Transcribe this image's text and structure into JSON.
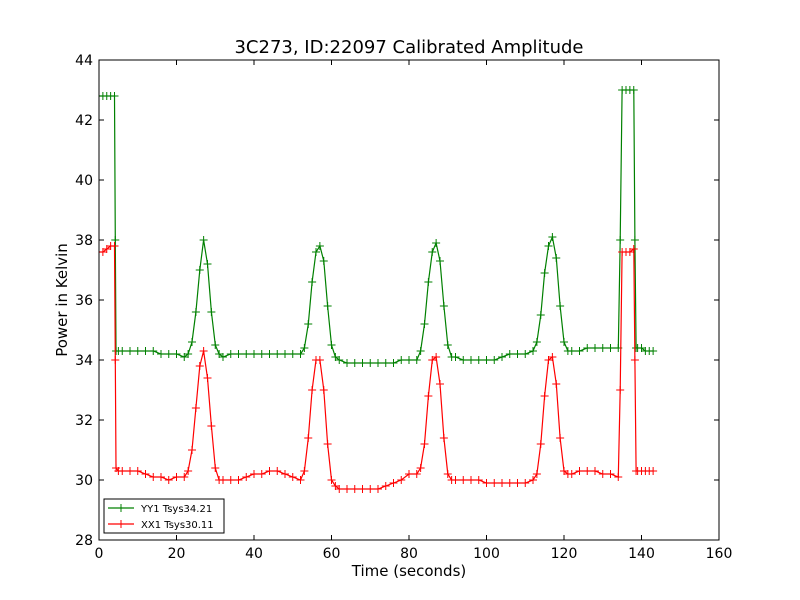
{
  "chart_data": {
    "type": "line",
    "title": "3C273, ID:22097 Calibrated Amplitude",
    "xlabel": "Time (seconds)",
    "ylabel": "Power in Kelvin",
    "xlim": [
      0,
      160
    ],
    "ylim": [
      28,
      44
    ],
    "xticks": [
      0,
      20,
      40,
      60,
      80,
      100,
      120,
      140,
      160
    ],
    "yticks": [
      28,
      30,
      32,
      34,
      36,
      38,
      40,
      42,
      44
    ],
    "grid": false,
    "legend_position": "lower-left",
    "marker": "+",
    "series": [
      {
        "name": "YY1 Tsys34.21",
        "color": "#008000",
        "x": [
          0,
          1,
          2,
          3,
          4,
          4.2,
          4.4,
          5,
          6,
          8,
          10,
          12,
          14,
          16,
          18,
          20,
          22,
          23,
          24,
          25,
          26,
          27,
          28,
          29,
          30,
          31,
          32,
          34,
          36,
          38,
          40,
          42,
          44,
          46,
          48,
          50,
          52,
          53,
          54,
          55,
          56,
          57,
          58,
          59,
          60,
          61,
          62,
          64,
          66,
          68,
          70,
          72,
          74,
          76,
          78,
          80,
          82,
          83,
          84,
          85,
          86,
          87,
          88,
          89,
          90,
          91,
          92,
          94,
          96,
          98,
          100,
          102,
          104,
          106,
          108,
          110,
          112,
          113,
          114,
          115,
          116,
          117,
          118,
          119,
          120,
          121,
          122,
          124,
          126,
          128,
          130,
          132,
          134,
          134.5,
          135,
          136,
          137,
          138,
          138.3,
          138.6,
          139,
          140,
          141,
          142,
          143
        ],
        "y": [
          42.8,
          42.8,
          42.8,
          42.8,
          42.8,
          38.0,
          34.3,
          34.3,
          34.3,
          34.3,
          34.3,
          34.3,
          34.3,
          34.2,
          34.2,
          34.2,
          34.1,
          34.2,
          34.6,
          35.6,
          37.0,
          38.0,
          37.2,
          35.6,
          34.5,
          34.2,
          34.1,
          34.2,
          34.2,
          34.2,
          34.2,
          34.2,
          34.2,
          34.2,
          34.2,
          34.2,
          34.2,
          34.4,
          35.2,
          36.6,
          37.6,
          37.8,
          37.3,
          35.8,
          34.5,
          34.1,
          34.0,
          33.9,
          33.9,
          33.9,
          33.9,
          33.9,
          33.9,
          33.9,
          34.0,
          34.0,
          34.0,
          34.3,
          35.2,
          36.6,
          37.6,
          37.9,
          37.3,
          35.8,
          34.5,
          34.1,
          34.1,
          34.0,
          34.0,
          34.0,
          34.0,
          34.0,
          34.1,
          34.2,
          34.2,
          34.2,
          34.3,
          34.6,
          35.5,
          36.9,
          37.8,
          38.1,
          37.4,
          35.8,
          34.6,
          34.3,
          34.3,
          34.3,
          34.4,
          34.4,
          34.4,
          34.4,
          34.4,
          38.0,
          43.0,
          43.0,
          43.0,
          43.0,
          38.0,
          34.4,
          34.4,
          34.4,
          34.3,
          34.3,
          34.3
        ]
      },
      {
        "name": "XX1 Tsys30.11",
        "color": "#ff0000",
        "x": [
          0,
          1,
          2,
          3,
          4,
          4.2,
          4.4,
          5,
          6,
          8,
          10,
          12,
          14,
          16,
          18,
          20,
          22,
          23,
          24,
          25,
          26,
          27,
          28,
          29,
          30,
          31,
          32,
          34,
          36,
          38,
          40,
          42,
          44,
          46,
          48,
          50,
          52,
          53,
          54,
          55,
          56,
          57,
          58,
          59,
          60,
          61,
          62,
          64,
          66,
          68,
          70,
          72,
          74,
          76,
          78,
          80,
          82,
          83,
          84,
          85,
          86,
          87,
          88,
          89,
          90,
          91,
          92,
          94,
          96,
          98,
          100,
          102,
          104,
          106,
          108,
          110,
          112,
          113,
          114,
          115,
          116,
          117,
          118,
          119,
          120,
          121,
          122,
          124,
          126,
          128,
          130,
          132,
          134,
          134.5,
          135,
          136,
          137,
          138,
          138.3,
          138.6,
          139,
          140,
          141,
          142,
          143
        ],
        "y": [
          37.6,
          37.6,
          37.7,
          37.8,
          37.8,
          34.0,
          30.4,
          30.3,
          30.3,
          30.3,
          30.3,
          30.2,
          30.1,
          30.1,
          30.0,
          30.1,
          30.1,
          30.3,
          31.0,
          32.4,
          33.8,
          34.3,
          33.4,
          31.8,
          30.4,
          30.0,
          30.0,
          30.0,
          30.0,
          30.1,
          30.2,
          30.2,
          30.3,
          30.3,
          30.2,
          30.1,
          30.0,
          30.3,
          31.4,
          33.0,
          34.0,
          34.0,
          33.0,
          31.2,
          30.0,
          29.8,
          29.7,
          29.7,
          29.7,
          29.7,
          29.7,
          29.7,
          29.8,
          29.9,
          30.0,
          30.2,
          30.2,
          30.4,
          31.2,
          32.8,
          34.0,
          34.1,
          33.2,
          31.4,
          30.2,
          30.0,
          30.0,
          30.0,
          30.0,
          30.0,
          29.9,
          29.9,
          29.9,
          29.9,
          29.9,
          29.9,
          30.0,
          30.2,
          31.2,
          32.8,
          34.0,
          34.1,
          33.2,
          31.4,
          30.3,
          30.2,
          30.2,
          30.3,
          30.3,
          30.3,
          30.2,
          30.2,
          30.1,
          33.0,
          37.6,
          37.6,
          37.6,
          37.7,
          34.0,
          30.3,
          30.3,
          30.3,
          30.3,
          30.3,
          30.3
        ]
      }
    ]
  }
}
